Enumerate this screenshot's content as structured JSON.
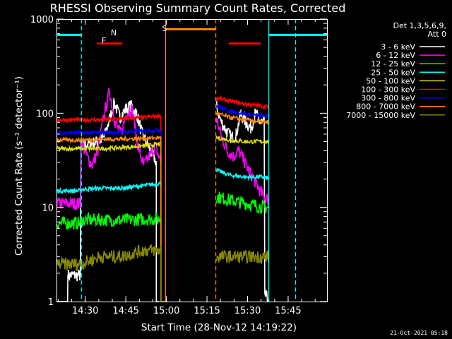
{
  "chart_data": {
    "type": "line",
    "title": "RHESSI Observing Summary Count Rates, Corrected",
    "xlabel": "Start Time (28-Nov-12 14:19:22)",
    "ylabel": "Corrected Count Rate (s⁻¹ detector⁻¹)",
    "ylog": true,
    "ylim": [
      1,
      1000
    ],
    "xlim_minutes": [
      0,
      100
    ],
    "x_ticks": [
      {
        "label": "14:30",
        "m": 10.63
      },
      {
        "label": "14:45",
        "m": 25.63
      },
      {
        "label": "15:00",
        "m": 40.63
      },
      {
        "label": "15:15",
        "m": 55.63
      },
      {
        "label": "15:30",
        "m": 70.63
      },
      {
        "label": "15:45",
        "m": 85.63
      }
    ],
    "y_ticks": [
      {
        "label": "1",
        "v": 1
      },
      {
        "label": "10",
        "v": 10
      },
      {
        "label": "100",
        "v": 100
      },
      {
        "label": "1000",
        "v": 1000
      }
    ],
    "legend": {
      "header": [
        "Det 1,3,5,6,9,",
        "Att 0"
      ],
      "placement": "right"
    },
    "series": [
      {
        "name": "3 - 6 keV",
        "color": "#ffffff",
        "segments": [
          {
            "x": [
              0.0,
              4.1,
              4.2,
              8.8,
              9.0,
              15.5,
              17.6,
              19.3,
              21.4,
              23.4,
              25.5,
              27.5,
              29.6,
              31.7,
              33.8,
              35.8,
              36.9,
              36.9,
              38.0
            ],
            "y": [
              1.0,
              1.0,
              1.9,
              1.9,
              45,
              50,
              55,
              80,
              130,
              90,
              110,
              120,
              100,
              60,
              45,
              35,
              30,
              1,
              1
            ]
          },
          {
            "x": [
              59.0,
              61.0,
              62.8,
              64.6,
              66.4,
              68.2,
              70.0,
              71.8,
              73.6,
              75.2,
              76.8,
              77.0,
              78.5
            ],
            "y": [
              120,
              80,
              65,
              55,
              60,
              100,
              80,
              70,
              100,
              80,
              80,
              1.2,
              1.0
            ]
          }
        ]
      },
      {
        "name": "6 - 12 keV",
        "color": "#ff00ff",
        "segments": [
          {
            "x": [
              0.0,
              4.1,
              4.2,
              8.8,
              9.0,
              11.1,
              13.2,
              15.3,
              17.4,
              19.6,
              21.7,
              23.8,
              25.9,
              28.0,
              30.1,
              32.2,
              34.4,
              36.5,
              38.6,
              38.6,
              40.3
            ],
            "y": [
              11,
              11,
              11,
              11,
              55,
              35,
              28,
              40,
              90,
              170,
              80,
              60,
              100,
              110,
              45,
              28,
              35,
              45,
              30,
              1,
              1
            ]
          },
          {
            "x": [
              59.0,
              61.1,
              63.2,
              65.3,
              67.4,
              69.6,
              71.7,
              73.8,
              75.9,
              76.8,
              78.5
            ],
            "y": [
              90,
              55,
              40,
              35,
              40,
              30,
              23,
              18,
              14,
              13,
              12
            ]
          }
        ]
      },
      {
        "name": "12 - 25 keV",
        "color": "#00ff00",
        "segments": [
          {
            "x": [
              0.0,
              4.1,
              4.2,
              8.8,
              9.0,
              16.0,
              24.0,
              32.0,
              38.6,
              38.6,
              40.3
            ],
            "y": [
              6.8,
              6.8,
              6.8,
              6.8,
              7.3,
              7.4,
              7.3,
              7.5,
              7.5,
              1,
              1
            ]
          },
          {
            "x": [
              59.0,
              64.0,
              70.0,
              76.8,
              78.5
            ],
            "y": [
              13,
              12,
              11,
              10,
              10
            ]
          }
        ]
      },
      {
        "name": "25 - 50 keV",
        "color": "#00ffff",
        "segments": [
          {
            "x": [
              0.0,
              4.1,
              4.2,
              8.8,
              9.0,
              16.0,
              24.0,
              32.0,
              38.6,
              38.6,
              40.3
            ],
            "y": [
              15,
              15,
              15,
              15,
              15.5,
              16,
              16,
              17,
              18,
              1,
              1
            ]
          },
          {
            "x": [
              59.0,
              64.0,
              70.0,
              76.8,
              78.5
            ],
            "y": [
              25,
              22,
              21,
              21,
              20
            ]
          }
        ]
      },
      {
        "name": "50 - 100 keV",
        "color": "#dddd00",
        "segments": [
          {
            "x": [
              0.0,
              4.1,
              4.2,
              8.8,
              9.0,
              16.0,
              24.0,
              32.0,
              38.6,
              38.6,
              40.3
            ],
            "y": [
              42,
              42,
              42,
              42,
              42,
              42,
              43,
              45,
              47,
              1,
              1
            ]
          },
          {
            "x": [
              59.0,
              64.0,
              70.0,
              76.8,
              78.5
            ],
            "y": [
              55,
              52,
              50,
              50,
              50
            ]
          }
        ]
      },
      {
        "name": "100 - 300 keV",
        "color": "#ff0000",
        "segments": [
          {
            "x": [
              0.0,
              4.1,
              4.2,
              8.8,
              9.0,
              16.0,
              24.0,
              32.0,
              38.6,
              38.6,
              40.3
            ],
            "y": [
              85,
              85,
              85,
              85,
              85,
              85,
              87,
              90,
              94,
              1,
              1
            ]
          },
          {
            "x": [
              59.0,
              64.0,
              70.0,
              76.8,
              78.5
            ],
            "y": [
              145,
              135,
              125,
              118,
              118
            ]
          }
        ]
      },
      {
        "name": "300 - 800 keV",
        "color": "#0000ff",
        "segments": [
          {
            "x": [
              0.0,
              4.1,
              4.2,
              8.8,
              9.0,
              16.0,
              24.0,
              32.0,
              38.6,
              38.6,
              40.3
            ],
            "y": [
              62,
              62,
              62,
              62,
              62,
              62,
              63,
              65,
              66,
              1,
              1
            ]
          },
          {
            "x": [
              59.0,
              64.0,
              70.0,
              76.8,
              78.5
            ],
            "y": [
              120,
              105,
              98,
              93,
              93
            ]
          }
        ]
      },
      {
        "name": "800 - 7000 keV",
        "color": "#ff8800",
        "segments": [
          {
            "x": [
              0.0,
              4.1,
              4.2,
              8.8,
              9.0,
              16.0,
              24.0,
              32.0,
              38.6,
              38.6,
              40.3
            ],
            "y": [
              52,
              52,
              52,
              52,
              52,
              53,
              53,
              54,
              55,
              1,
              1
            ]
          },
          {
            "x": [
              59.0,
              64.0,
              70.0,
              76.8,
              78.5
            ],
            "y": [
              100,
              90,
              85,
              80,
              80
            ]
          }
        ]
      },
      {
        "name": "7000 - 15000 keV",
        "color": "#888800",
        "segments": [
          {
            "x": [
              0.0,
              4.1,
              4.2,
              8.8,
              9.0,
              16.0,
              24.0,
              32.0,
              38.6,
              38.6,
              40.3
            ],
            "y": [
              2.5,
              2.5,
              2.5,
              2.5,
              2.5,
              3.0,
              3.0,
              3.5,
              3.5,
              1,
              1
            ]
          },
          {
            "x": [
              59.0,
              64.0,
              70.0,
              76.8,
              78.5
            ],
            "y": [
              3.0,
              3.0,
              3.0,
              3.0,
              3.0
            ]
          }
        ]
      }
    ],
    "flags": [
      {
        "label": "N",
        "color": "#00ffff"
      },
      {
        "label": "F",
        "color": "#ff0000"
      },
      {
        "label": "S",
        "color": "#ff8800"
      }
    ],
    "vlines": [
      {
        "color": "#00ffff",
        "style": "dashed",
        "m": 9.2
      },
      {
        "color": "#00ffff",
        "style": "dashed",
        "m": 88.4
      },
      {
        "color": "#ff8800",
        "style": "solid",
        "m": 40.3
      },
      {
        "color": "#ff8800",
        "style": "dashed",
        "m": 58.9
      },
      {
        "color": "#00ffff",
        "style": "solid",
        "m": 78.5
      }
    ],
    "bars": [
      {
        "color": "#00ffff",
        "x": [
          0.0,
          9.2
        ],
        "y": 680
      },
      {
        "color": "#00ffff",
        "x": [
          78.5,
          100.0
        ],
        "y": 680
      },
      {
        "color": "#ff0000",
        "x": [
          16.0,
          24.2
        ],
        "y": 550
      },
      {
        "color": "#ff0000",
        "x": [
          63.7,
          75.5
        ],
        "y": 550
      },
      {
        "color": "#ff8800",
        "x": [
          40.3,
          58.9
        ],
        "y": 780
      }
    ]
  },
  "footer": {
    "timestamp": "21-Oct-2021 05:18"
  }
}
